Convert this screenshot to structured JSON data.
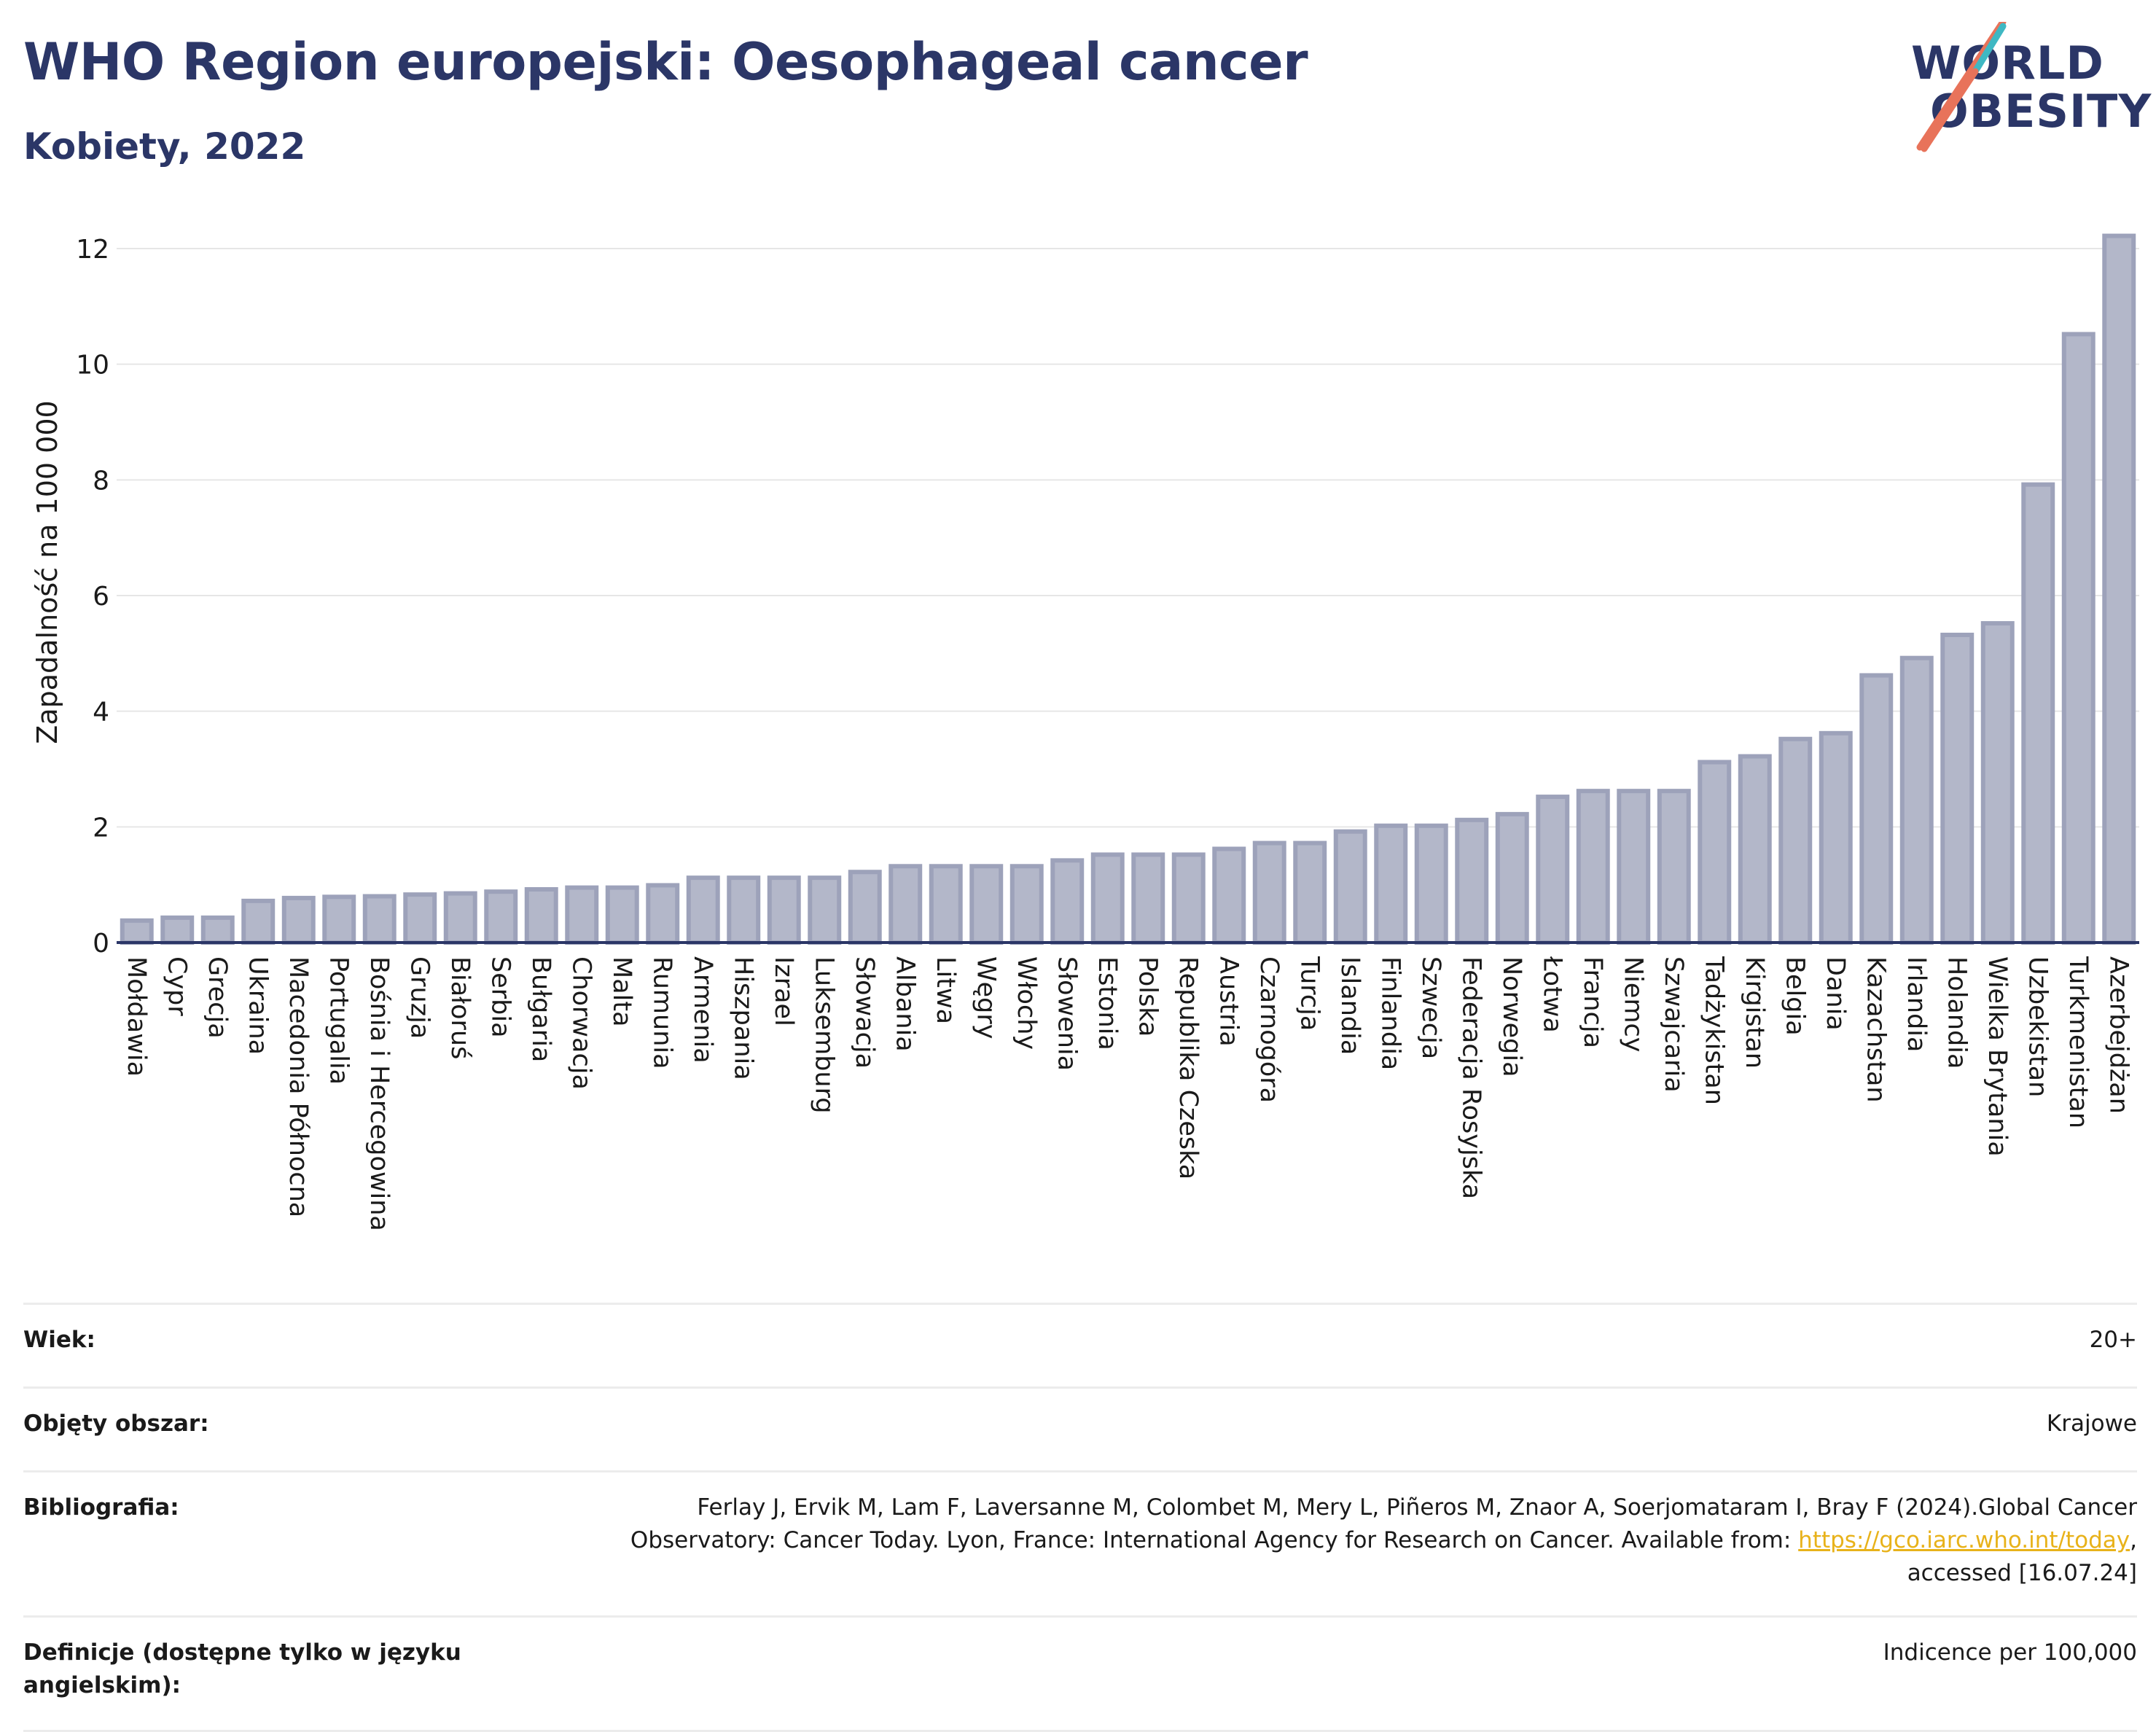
{
  "header": {
    "title": "WHO Region europejski: Oesophageal cancer",
    "subtitle": "Kobiety, 2022"
  },
  "logo": {
    "line1": "WORLD",
    "line2": "OBESITY",
    "colors": {
      "navy": "#2b3667",
      "teal": "#3fb8c3",
      "coral": "#e8735a"
    }
  },
  "chart_data": {
    "type": "bar",
    "ylabel": "Zapadalność na 100 000",
    "xlabel": "",
    "ylim": [
      0,
      12.4
    ],
    "yticks": [
      0,
      2,
      4,
      6,
      8,
      10,
      12
    ],
    "grid": true,
    "bar_color": "#b3b7c9",
    "bar_edge_color": "#9da2ba",
    "axis_color": "#2b3667",
    "categories": [
      "Mołdawia",
      "Cypr",
      "Grecja",
      "Ukraina",
      "Macedonia Północna",
      "Portugalia",
      "Bośnia i Hercegowina",
      "Gruzja",
      "Białoruś",
      "Serbia",
      "Bułgaria",
      "Chorwacja",
      "Malta",
      "Rumunia",
      "Armenia",
      "Hiszpania",
      "Izrael",
      "Luksemburg",
      "Słowacja",
      "Albania",
      "Litwa",
      "Węgry",
      "Włochy",
      "Słowenia",
      "Estonia",
      "Polska",
      "Republika Czeska",
      "Austria",
      "Czarnogóra",
      "Turcja",
      "Islandia",
      "Finlandia",
      "Szwecja",
      "Federacja Rosyjska",
      "Norwegia",
      "Łotwa",
      "Francja",
      "Niemcy",
      "Szwajcaria",
      "Tadżykistan",
      "Kirgistan",
      "Belgia",
      "Dania",
      "Kazachstan",
      "Irlandia",
      "Holandia",
      "Wielka Brytania",
      "Uzbekistan",
      "Turkmenistan",
      "Azerbejdżan"
    ],
    "values": [
      0.38,
      0.43,
      0.43,
      0.72,
      0.77,
      0.79,
      0.8,
      0.83,
      0.85,
      0.88,
      0.92,
      0.95,
      0.95,
      0.99,
      1.12,
      1.12,
      1.12,
      1.12,
      1.22,
      1.32,
      1.32,
      1.32,
      1.32,
      1.42,
      1.52,
      1.52,
      1.52,
      1.62,
      1.72,
      1.72,
      1.92,
      2.02,
      2.02,
      2.12,
      2.22,
      2.52,
      2.62,
      2.62,
      2.62,
      3.12,
      3.22,
      3.52,
      3.62,
      4.62,
      4.92,
      5.32,
      5.52,
      7.92,
      10.52,
      12.22
    ]
  },
  "footer": {
    "rows": [
      {
        "label": "Wiek:",
        "value": "20+"
      },
      {
        "label": "Objęty obszar:",
        "value": "Krajowe"
      }
    ],
    "biblio": {
      "label": "Bibliografia:",
      "line1": "Ferlay J, Ervik M, Lam F, Laversanne M, Colombet M, Mery L, Piñeros M, Znaor A, Soerjomataram I, Bray F (2024).Global Cancer",
      "line2_pre": "Observatory: Cancer Today. Lyon, France: International Agency for Research on Cancer. Available from: ",
      "link": "https://gco.iarc.who.int/today",
      "line2_post": ",",
      "line3": "accessed [16.07.24]"
    },
    "definitions": {
      "label_line1": "Definicje (dostępne tylko w języku",
      "label_line2": "angielskim):",
      "value": "Indicence per 100,000"
    }
  }
}
